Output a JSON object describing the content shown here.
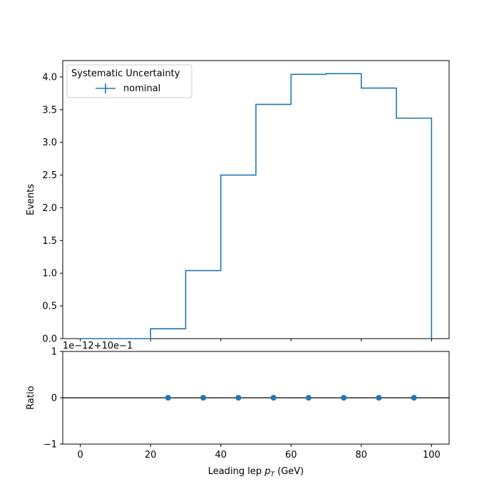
{
  "chart_data": [
    {
      "type": "line",
      "drawstyle": "steps",
      "panel": "main",
      "ylabel": "Events",
      "ylim": [
        0,
        4.25
      ],
      "xlim": [
        -5,
        105
      ],
      "bin_edges": [
        0,
        10,
        20,
        30,
        40,
        50,
        60,
        70,
        80,
        90,
        100
      ],
      "series": [
        {
          "name": "nominal",
          "values": [
            0,
            0,
            0.15,
            1.04,
            2.5,
            3.58,
            4.04,
            4.05,
            3.83,
            3.37
          ],
          "color": "#1f77b4"
        }
      ],
      "yticks": [
        "0.0",
        "0.5",
        "1.0",
        "1.5",
        "2.0",
        "2.5",
        "3.0",
        "3.5",
        "4.0"
      ],
      "ytick_values": [
        0,
        0.5,
        1.0,
        1.5,
        2.0,
        2.5,
        3.0,
        3.5,
        4.0
      ],
      "legend": {
        "title": "Systematic Uncertainty",
        "entries": [
          "nominal"
        ],
        "placement": "top-left"
      }
    },
    {
      "type": "scatter",
      "panel": "ratio",
      "ylabel": "Ratio",
      "xlabel": "Leading lep p_T (GeV)",
      "xlabel_main": "Leading lep ",
      "xlabel_sym": "p",
      "xlabel_sub": "T",
      "xlabel_unit": " (GeV)",
      "offset_text": "1e−12+10e−1",
      "xlim": [
        -5,
        105
      ],
      "ylim": [
        -1,
        1
      ],
      "x": [
        25,
        35,
        45,
        55,
        65,
        75,
        85,
        95
      ],
      "y": [
        0,
        0,
        0,
        0,
        0,
        0,
        0,
        0
      ],
      "reference_line": 0,
      "point_color": "#1f77b4",
      "yticks": [
        "−1",
        "0",
        "1"
      ],
      "ytick_values": [
        -1,
        0,
        1
      ],
      "xticks": [
        "0",
        "20",
        "40",
        "60",
        "80",
        "100"
      ],
      "xtick_values": [
        0,
        20,
        40,
        60,
        80,
        100
      ]
    }
  ]
}
